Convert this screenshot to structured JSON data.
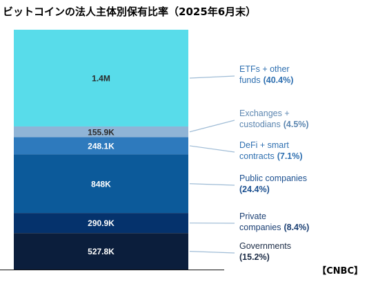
{
  "title": "ビットコインの法人主体別保有比率（2025年6月末）",
  "source": "【CNBC】",
  "chart_data": {
    "type": "bar",
    "stacked": true,
    "series": [
      {
        "name": "ETFs + other funds",
        "legend_lines": [
          "ETFs + other",
          "funds"
        ],
        "value_label": "1.4M",
        "value": 1400000,
        "share_pct": "(40.4%)",
        "color": "#58DCEA",
        "label_color": "#2A2A2A",
        "legend_color": "#2E6FB0"
      },
      {
        "name": "Exchanges + custodians",
        "legend_lines": [
          "Exchanges +",
          "custodians"
        ],
        "value_label": "155.9K",
        "value": 155900,
        "share_pct": "(4.5%)",
        "color": "#8FB4D6",
        "label_color": "#2A2A2A",
        "legend_color": "#5C86B0"
      },
      {
        "name": "DeFi + smart contracts",
        "legend_lines": [
          "DeFi + smart",
          "contracts"
        ],
        "value_label": "248.1K",
        "value": 248100,
        "share_pct": "(7.1%)",
        "color": "#2E7ABD",
        "label_color": "#FFFFFF",
        "legend_color": "#2E6FB0"
      },
      {
        "name": "Public companies",
        "legend_lines": [
          "Public companies",
          ""
        ],
        "value_label": "848K",
        "value": 848000,
        "share_pct": "(24.4%)",
        "color": "#0C5A9A",
        "label_color": "#FFFFFF",
        "legend_color": "#1B4F8F"
      },
      {
        "name": "Private companies",
        "legend_lines": [
          "Private",
          "companies"
        ],
        "value_label": "290.9K",
        "value": 290900,
        "share_pct": "(8.4%)",
        "color": "#05326C",
        "label_color": "#FFFFFF",
        "legend_color": "#1B3F73"
      },
      {
        "name": "Governments",
        "legend_lines": [
          "Governments",
          ""
        ],
        "value_label": "527.8K",
        "value": 527800,
        "share_pct": "(15.2%)",
        "color": "#0B1E3C",
        "label_color": "#FFFFFF",
        "legend_color": "#1B2B45"
      }
    ]
  }
}
